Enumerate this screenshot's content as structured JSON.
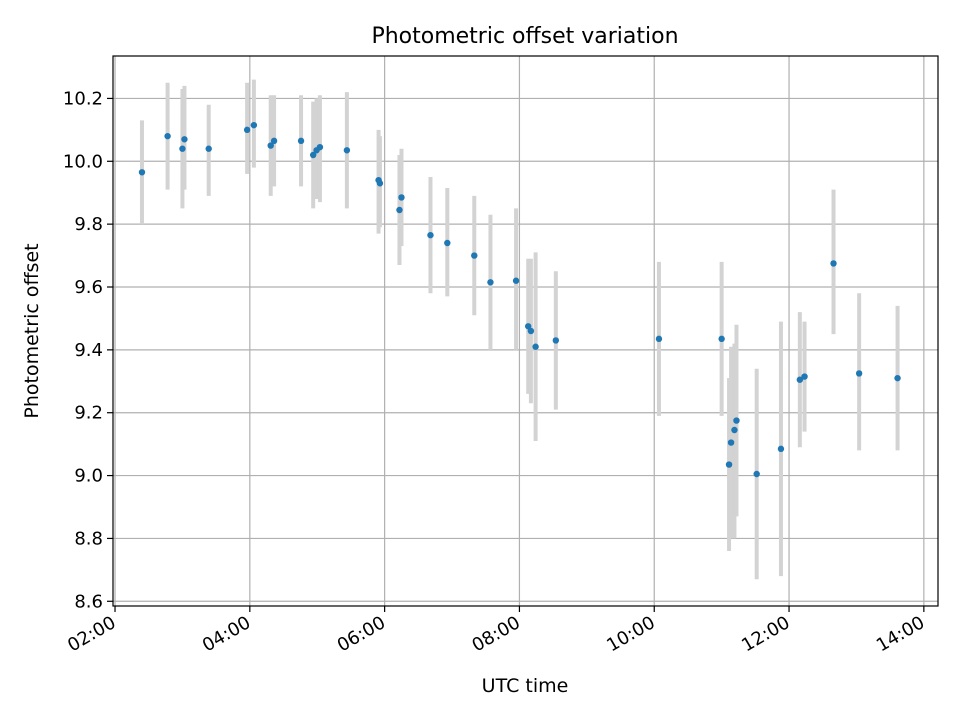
{
  "chart_data": {
    "type": "scatter",
    "title": "Photometric offset variation",
    "xlabel": "UTC time",
    "ylabel": "Photometric offset",
    "x_unit": "hours",
    "xlim": [
      1.97,
      14.21
    ],
    "ylim": [
      8.585,
      10.335
    ],
    "x_ticks": [
      {
        "value": 2,
        "label": "02:00"
      },
      {
        "value": 4,
        "label": "04:00"
      },
      {
        "value": 6,
        "label": "06:00"
      },
      {
        "value": 8,
        "label": "08:00"
      },
      {
        "value": 10,
        "label": "10:00"
      },
      {
        "value": 12,
        "label": "12:00"
      },
      {
        "value": 14,
        "label": "14:00"
      }
    ],
    "y_ticks": [
      {
        "value": 8.6,
        "label": "8.6"
      },
      {
        "value": 8.8,
        "label": "8.8"
      },
      {
        "value": 9.0,
        "label": "9.0"
      },
      {
        "value": 9.2,
        "label": "9.2"
      },
      {
        "value": 9.4,
        "label": "9.4"
      },
      {
        "value": 9.6,
        "label": "9.6"
      },
      {
        "value": 9.8,
        "label": "9.8"
      },
      {
        "value": 10.0,
        "label": "10.0"
      },
      {
        "value": 10.2,
        "label": "10.2"
      }
    ],
    "grid": true,
    "marker_color": "#1f77b4",
    "errorbar_color": "#d3d3d3",
    "points": [
      {
        "x": 2.4,
        "y": 9.965,
        "lo": 9.8,
        "hi": 10.13
      },
      {
        "x": 2.78,
        "y": 10.08,
        "lo": 9.91,
        "hi": 10.25
      },
      {
        "x": 3.0,
        "y": 10.04,
        "lo": 9.85,
        "hi": 10.23
      },
      {
        "x": 3.03,
        "y": 10.07,
        "lo": 9.91,
        "hi": 10.24
      },
      {
        "x": 3.39,
        "y": 10.04,
        "lo": 9.89,
        "hi": 10.18
      },
      {
        "x": 3.96,
        "y": 10.1,
        "lo": 9.96,
        "hi": 10.25
      },
      {
        "x": 4.06,
        "y": 10.115,
        "lo": 9.98,
        "hi": 10.26
      },
      {
        "x": 4.31,
        "y": 10.05,
        "lo": 9.89,
        "hi": 10.21
      },
      {
        "x": 4.36,
        "y": 10.065,
        "lo": 9.92,
        "hi": 10.21
      },
      {
        "x": 4.76,
        "y": 10.065,
        "lo": 9.92,
        "hi": 10.21
      },
      {
        "x": 4.94,
        "y": 10.02,
        "lo": 9.85,
        "hi": 10.19
      },
      {
        "x": 4.99,
        "y": 10.035,
        "lo": 9.88,
        "hi": 10.2
      },
      {
        "x": 5.04,
        "y": 10.045,
        "lo": 9.87,
        "hi": 10.21
      },
      {
        "x": 5.44,
        "y": 10.035,
        "lo": 9.85,
        "hi": 10.22
      },
      {
        "x": 5.91,
        "y": 9.94,
        "lo": 9.77,
        "hi": 10.1
      },
      {
        "x": 5.93,
        "y": 9.93,
        "lo": 9.79,
        "hi": 10.08
      },
      {
        "x": 6.22,
        "y": 9.845,
        "lo": 9.67,
        "hi": 10.02
      },
      {
        "x": 6.25,
        "y": 9.885,
        "lo": 9.73,
        "hi": 10.04
      },
      {
        "x": 6.68,
        "y": 9.765,
        "lo": 9.58,
        "hi": 9.95
      },
      {
        "x": 6.93,
        "y": 9.74,
        "lo": 9.57,
        "hi": 9.915
      },
      {
        "x": 7.33,
        "y": 9.7,
        "lo": 9.51,
        "hi": 9.89
      },
      {
        "x": 7.57,
        "y": 9.615,
        "lo": 9.4,
        "hi": 9.83
      },
      {
        "x": 7.95,
        "y": 9.62,
        "lo": 9.4,
        "hi": 9.85
      },
      {
        "x": 8.13,
        "y": 9.475,
        "lo": 9.26,
        "hi": 9.69
      },
      {
        "x": 8.17,
        "y": 9.46,
        "lo": 9.23,
        "hi": 9.69
      },
      {
        "x": 8.24,
        "y": 9.41,
        "lo": 9.11,
        "hi": 9.71
      },
      {
        "x": 8.54,
        "y": 9.43,
        "lo": 9.21,
        "hi": 9.65
      },
      {
        "x": 10.07,
        "y": 9.435,
        "lo": 9.19,
        "hi": 9.68
      },
      {
        "x": 11.0,
        "y": 9.435,
        "lo": 9.19,
        "hi": 9.68
      },
      {
        "x": 11.11,
        "y": 9.035,
        "lo": 8.76,
        "hi": 9.31
      },
      {
        "x": 11.14,
        "y": 9.105,
        "lo": 8.8,
        "hi": 9.41
      },
      {
        "x": 11.19,
        "y": 9.145,
        "lo": 8.8,
        "hi": 9.42
      },
      {
        "x": 11.22,
        "y": 9.175,
        "lo": 8.87,
        "hi": 9.48
      },
      {
        "x": 11.52,
        "y": 9.005,
        "lo": 8.67,
        "hi": 9.34
      },
      {
        "x": 11.88,
        "y": 9.085,
        "lo": 8.68,
        "hi": 9.49
      },
      {
        "x": 12.16,
        "y": 9.305,
        "lo": 9.09,
        "hi": 9.52
      },
      {
        "x": 12.23,
        "y": 9.315,
        "lo": 9.14,
        "hi": 9.49
      },
      {
        "x": 12.66,
        "y": 9.675,
        "lo": 9.45,
        "hi": 9.91
      },
      {
        "x": 13.04,
        "y": 9.325,
        "lo": 9.08,
        "hi": 9.58
      },
      {
        "x": 13.61,
        "y": 9.31,
        "lo": 9.08,
        "hi": 9.54
      }
    ]
  }
}
